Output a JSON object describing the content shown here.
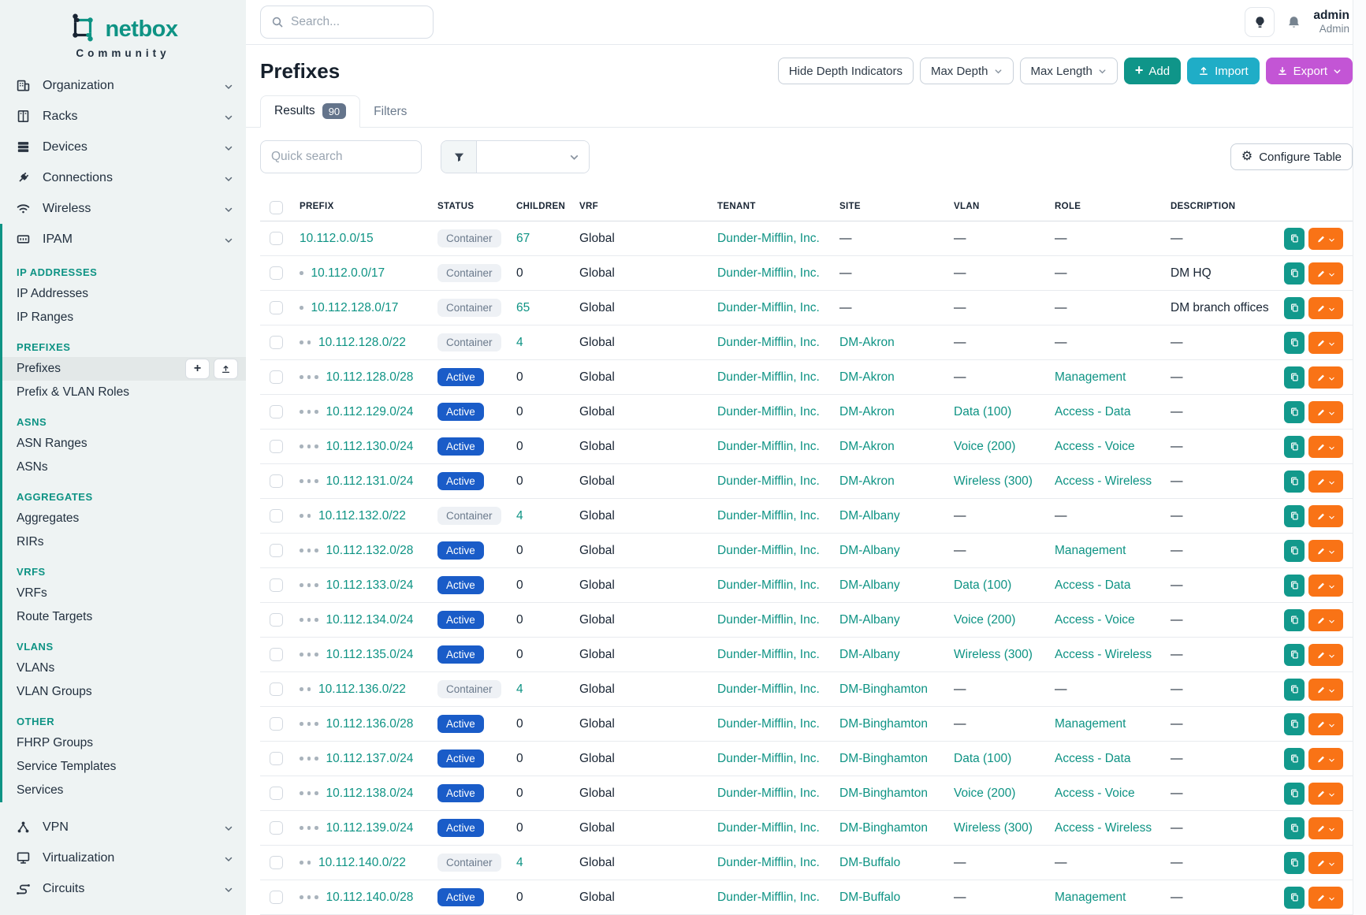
{
  "brand": {
    "name": "netbox",
    "subtitle": "Community"
  },
  "topbar": {
    "search_placeholder": "Search...",
    "user_name": "admin",
    "user_role": "Admin"
  },
  "sidebar": {
    "top_items": [
      {
        "label": "Organization",
        "icon": "organization"
      },
      {
        "label": "Racks",
        "icon": "racks"
      },
      {
        "label": "Devices",
        "icon": "devices"
      },
      {
        "label": "Connections",
        "icon": "connections"
      },
      {
        "label": "Wireless",
        "icon": "wireless"
      }
    ],
    "ipam": {
      "label": "IPAM",
      "icon": "ipam",
      "groups": [
        {
          "heading": "IP ADDRESSES",
          "items": [
            {
              "label": "IP Addresses"
            },
            {
              "label": "IP Ranges"
            }
          ]
        },
        {
          "heading": "PREFIXES",
          "items": [
            {
              "label": "Prefixes",
              "active": true
            },
            {
              "label": "Prefix & VLAN Roles"
            }
          ]
        },
        {
          "heading": "ASNS",
          "items": [
            {
              "label": "ASN Ranges"
            },
            {
              "label": "ASNs"
            }
          ]
        },
        {
          "heading": "AGGREGATES",
          "items": [
            {
              "label": "Aggregates"
            },
            {
              "label": "RIRs"
            }
          ]
        },
        {
          "heading": "VRFS",
          "items": [
            {
              "label": "VRFs"
            },
            {
              "label": "Route Targets"
            }
          ]
        },
        {
          "heading": "VLANS",
          "items": [
            {
              "label": "VLANs"
            },
            {
              "label": "VLAN Groups"
            }
          ]
        },
        {
          "heading": "OTHER",
          "items": [
            {
              "label": "FHRP Groups"
            },
            {
              "label": "Service Templates"
            },
            {
              "label": "Services"
            }
          ]
        }
      ]
    },
    "bottom_items": [
      {
        "label": "VPN",
        "icon": "vpn"
      },
      {
        "label": "Virtualization",
        "icon": "virtualization"
      },
      {
        "label": "Circuits",
        "icon": "circuits"
      }
    ]
  },
  "page": {
    "title": "Prefixes",
    "toolbar": {
      "hide_depth": "Hide Depth Indicators",
      "max_depth": "Max Depth",
      "max_length": "Max Length",
      "add": "Add",
      "import": "Import",
      "export": "Export"
    },
    "tabs": [
      {
        "label": "Results",
        "badge": "90",
        "active": true
      },
      {
        "label": "Filters",
        "active": false
      }
    ],
    "quick_search_placeholder": "Quick search",
    "configure_table": "Configure Table"
  },
  "table": {
    "columns": [
      "PREFIX",
      "STATUS",
      "CHILDREN",
      "VRF",
      "TENANT",
      "SITE",
      "VLAN",
      "ROLE",
      "DESCRIPTION"
    ],
    "rows": [
      {
        "depth": 0,
        "prefix": "10.112.0.0/15",
        "status": "Container",
        "children": "67",
        "children_link": true,
        "vrf": "Global",
        "tenant": "Dunder-Mifflin, Inc.",
        "site": "—",
        "vlan": "—",
        "role": "—",
        "description": "—"
      },
      {
        "depth": 1,
        "prefix": "10.112.0.0/17",
        "status": "Container",
        "children": "0",
        "children_link": false,
        "vrf": "Global",
        "tenant": "Dunder-Mifflin, Inc.",
        "site": "—",
        "vlan": "—",
        "role": "—",
        "description": "DM HQ"
      },
      {
        "depth": 1,
        "prefix": "10.112.128.0/17",
        "status": "Container",
        "children": "65",
        "children_link": true,
        "vrf": "Global",
        "tenant": "Dunder-Mifflin, Inc.",
        "site": "—",
        "vlan": "—",
        "role": "—",
        "description": "DM branch offices"
      },
      {
        "depth": 2,
        "prefix": "10.112.128.0/22",
        "status": "Container",
        "children": "4",
        "children_link": true,
        "vrf": "Global",
        "tenant": "Dunder-Mifflin, Inc.",
        "site": "DM-Akron",
        "vlan": "—",
        "role": "—",
        "description": "—"
      },
      {
        "depth": 3,
        "prefix": "10.112.128.0/28",
        "status": "Active",
        "children": "0",
        "children_link": false,
        "vrf": "Global",
        "tenant": "Dunder-Mifflin, Inc.",
        "site": "DM-Akron",
        "vlan": "—",
        "role": "Management",
        "description": "—"
      },
      {
        "depth": 3,
        "prefix": "10.112.129.0/24",
        "status": "Active",
        "children": "0",
        "children_link": false,
        "vrf": "Global",
        "tenant": "Dunder-Mifflin, Inc.",
        "site": "DM-Akron",
        "vlan": "Data (100)",
        "role": "Access - Data",
        "description": "—"
      },
      {
        "depth": 3,
        "prefix": "10.112.130.0/24",
        "status": "Active",
        "children": "0",
        "children_link": false,
        "vrf": "Global",
        "tenant": "Dunder-Mifflin, Inc.",
        "site": "DM-Akron",
        "vlan": "Voice (200)",
        "role": "Access - Voice",
        "description": "—"
      },
      {
        "depth": 3,
        "prefix": "10.112.131.0/24",
        "status": "Active",
        "children": "0",
        "children_link": false,
        "vrf": "Global",
        "tenant": "Dunder-Mifflin, Inc.",
        "site": "DM-Akron",
        "vlan": "Wireless (300)",
        "role": "Access - Wireless",
        "description": "—"
      },
      {
        "depth": 2,
        "prefix": "10.112.132.0/22",
        "status": "Container",
        "children": "4",
        "children_link": true,
        "vrf": "Global",
        "tenant": "Dunder-Mifflin, Inc.",
        "site": "DM-Albany",
        "vlan": "—",
        "role": "—",
        "description": "—"
      },
      {
        "depth": 3,
        "prefix": "10.112.132.0/28",
        "status": "Active",
        "children": "0",
        "children_link": false,
        "vrf": "Global",
        "tenant": "Dunder-Mifflin, Inc.",
        "site": "DM-Albany",
        "vlan": "—",
        "role": "Management",
        "description": "—"
      },
      {
        "depth": 3,
        "prefix": "10.112.133.0/24",
        "status": "Active",
        "children": "0",
        "children_link": false,
        "vrf": "Global",
        "tenant": "Dunder-Mifflin, Inc.",
        "site": "DM-Albany",
        "vlan": "Data (100)",
        "role": "Access - Data",
        "description": "—"
      },
      {
        "depth": 3,
        "prefix": "10.112.134.0/24",
        "status": "Active",
        "children": "0",
        "children_link": false,
        "vrf": "Global",
        "tenant": "Dunder-Mifflin, Inc.",
        "site": "DM-Albany",
        "vlan": "Voice (200)",
        "role": "Access - Voice",
        "description": "—"
      },
      {
        "depth": 3,
        "prefix": "10.112.135.0/24",
        "status": "Active",
        "children": "0",
        "children_link": false,
        "vrf": "Global",
        "tenant": "Dunder-Mifflin, Inc.",
        "site": "DM-Albany",
        "vlan": "Wireless (300)",
        "role": "Access - Wireless",
        "description": "—"
      },
      {
        "depth": 2,
        "prefix": "10.112.136.0/22",
        "status": "Container",
        "children": "4",
        "children_link": true,
        "vrf": "Global",
        "tenant": "Dunder-Mifflin, Inc.",
        "site": "DM-Binghamton",
        "vlan": "—",
        "role": "—",
        "description": "—"
      },
      {
        "depth": 3,
        "prefix": "10.112.136.0/28",
        "status": "Active",
        "children": "0",
        "children_link": false,
        "vrf": "Global",
        "tenant": "Dunder-Mifflin, Inc.",
        "site": "DM-Binghamton",
        "vlan": "—",
        "role": "Management",
        "description": "—"
      },
      {
        "depth": 3,
        "prefix": "10.112.137.0/24",
        "status": "Active",
        "children": "0",
        "children_link": false,
        "vrf": "Global",
        "tenant": "Dunder-Mifflin, Inc.",
        "site": "DM-Binghamton",
        "vlan": "Data (100)",
        "role": "Access - Data",
        "description": "—"
      },
      {
        "depth": 3,
        "prefix": "10.112.138.0/24",
        "status": "Active",
        "children": "0",
        "children_link": false,
        "vrf": "Global",
        "tenant": "Dunder-Mifflin, Inc.",
        "site": "DM-Binghamton",
        "vlan": "Voice (200)",
        "role": "Access - Voice",
        "description": "—"
      },
      {
        "depth": 3,
        "prefix": "10.112.139.0/24",
        "status": "Active",
        "children": "0",
        "children_link": false,
        "vrf": "Global",
        "tenant": "Dunder-Mifflin, Inc.",
        "site": "DM-Binghamton",
        "vlan": "Wireless (300)",
        "role": "Access - Wireless",
        "description": "—"
      },
      {
        "depth": 2,
        "prefix": "10.112.140.0/22",
        "status": "Container",
        "children": "4",
        "children_link": true,
        "vrf": "Global",
        "tenant": "Dunder-Mifflin, Inc.",
        "site": "DM-Buffalo",
        "vlan": "—",
        "role": "—",
        "description": "—"
      },
      {
        "depth": 3,
        "prefix": "10.112.140.0/28",
        "status": "Active",
        "children": "0",
        "children_link": false,
        "vrf": "Global",
        "tenant": "Dunder-Mifflin, Inc.",
        "site": "DM-Buffalo",
        "vlan": "—",
        "role": "Management",
        "description": "—"
      }
    ]
  },
  "colors": {
    "accent_teal": "#0e9384",
    "add_button": "#0f9589",
    "import_button": "#1fadc7",
    "export_button": "#c355d5",
    "edit_button": "#f97316",
    "copy_button": "#12998c",
    "active_badge": "#1a5cc8",
    "container_badge_bg": "#eef1f5",
    "sidebar_bg": "#eef3f3"
  }
}
